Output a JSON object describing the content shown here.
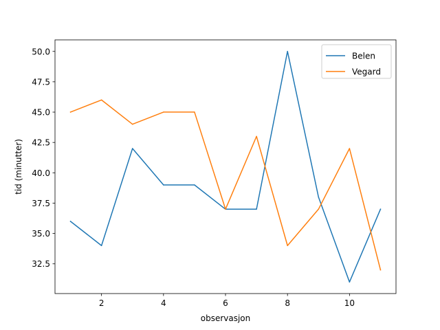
{
  "chart_data": {
    "type": "line",
    "title": "",
    "xlabel": "observasjon",
    "ylabel": "tid (minutter)",
    "x": [
      1,
      2,
      3,
      4,
      5,
      6,
      7,
      8,
      9,
      10,
      11
    ],
    "series": [
      {
        "name": "Belen",
        "color": "#1f77b4",
        "values": [
          36,
          34,
          42,
          39,
          39,
          37,
          37,
          50,
          38,
          31,
          37
        ]
      },
      {
        "name": "Vegard",
        "color": "#ff7f0e",
        "values": [
          45,
          46,
          44,
          45,
          45,
          37,
          43,
          34,
          37,
          42,
          32
        ]
      }
    ],
    "xlim": [
      0.5,
      11.5
    ],
    "ylim": [
      30.05,
      50.95
    ],
    "xticks": [
      2,
      4,
      6,
      8,
      10
    ],
    "xtick_labels": [
      "2",
      "4",
      "6",
      "8",
      "10"
    ],
    "yticks": [
      32.5,
      35.0,
      37.5,
      40.0,
      42.5,
      45.0,
      47.5,
      50.0
    ],
    "ytick_labels": [
      "32.5",
      "35.0",
      "37.5",
      "40.0",
      "42.5",
      "45.0",
      "47.5",
      "50.0"
    ],
    "grid": false,
    "legend_position": "top-right"
  }
}
